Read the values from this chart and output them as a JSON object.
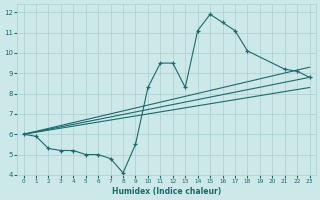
{
  "xlabel": "Humidex (Indice chaleur)",
  "bg_color": "#cce8e8",
  "grid_color": "#aacfcf",
  "line_color": "#1a6b6b",
  "marker": "+",
  "xlim": [
    -0.5,
    23.5
  ],
  "ylim": [
    4,
    12.4
  ],
  "xticks": [
    0,
    1,
    2,
    3,
    4,
    5,
    6,
    7,
    8,
    9,
    10,
    11,
    12,
    13,
    14,
    15,
    16,
    17,
    18,
    19,
    20,
    21,
    22,
    23
  ],
  "yticks": [
    4,
    5,
    6,
    7,
    8,
    9,
    10,
    11,
    12
  ],
  "series": [
    {
      "x": [
        0,
        1,
        2,
        3,
        4,
        5,
        6,
        7,
        8,
        9,
        10,
        11,
        12,
        13,
        14,
        15,
        16,
        17,
        18,
        21,
        22,
        23
      ],
      "y": [
        6.0,
        5.9,
        5.3,
        5.2,
        5.2,
        5.0,
        5.0,
        4.8,
        4.1,
        5.5,
        8.3,
        9.5,
        9.5,
        8.3,
        11.1,
        11.9,
        11.5,
        11.1,
        10.1,
        9.2,
        9.1,
        8.8
      ],
      "has_markers": true
    },
    {
      "x": [
        0,
        23
      ],
      "y": [
        6.0,
        9.3
      ],
      "has_markers": false
    },
    {
      "x": [
        0,
        23
      ],
      "y": [
        6.0,
        8.8
      ],
      "has_markers": false
    },
    {
      "x": [
        0,
        23
      ],
      "y": [
        6.0,
        8.3
      ],
      "has_markers": false
    }
  ]
}
